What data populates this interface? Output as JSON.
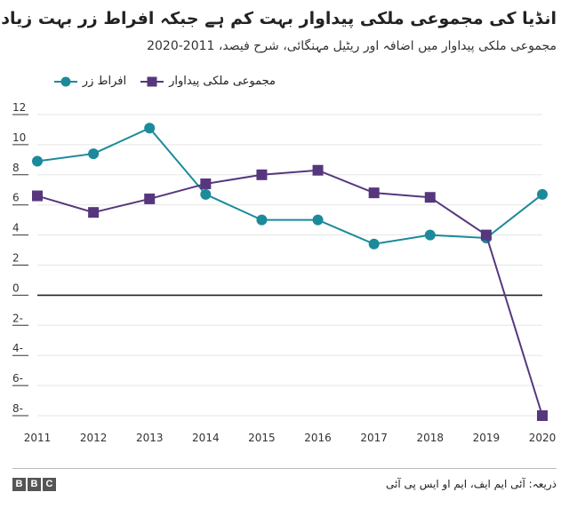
{
  "title": "انڈیا کی مجموعی ملکی پیداوار بہت کم ہے جبکہ افراط زر بہت زیادہ",
  "subtitle": "مجموعی ملکی پیداوار میں اضافہ اور ریٹیل مہنگائی، شرح فیصد، 2011-2020",
  "source": "ذریعہ: آئی ایم ایف، ایم او ایس پی آئی",
  "brand": [
    "B",
    "B",
    "C"
  ],
  "colors": {
    "gdp": "#56377e",
    "inflation": "#1b8a9b",
    "zero_line": "#222222",
    "grid": "#e5e5e5"
  },
  "chart_data": {
    "type": "line",
    "x": [
      "2011",
      "2012",
      "2013",
      "2014",
      "2015",
      "2016",
      "2017",
      "2018",
      "2019",
      "2020"
    ],
    "series": [
      {
        "name": "افراط زر",
        "marker": "circle",
        "color": "#1b8a9b",
        "values": [
          8.9,
          9.4,
          11.1,
          6.7,
          5.0,
          5.0,
          3.4,
          4.0,
          3.8,
          6.7
        ]
      },
      {
        "name": "مجموعی ملکی پیداوار",
        "marker": "square",
        "color": "#56377e",
        "values": [
          6.6,
          5.5,
          6.4,
          7.4,
          8.0,
          8.3,
          6.8,
          6.5,
          4.0,
          -8.0
        ]
      }
    ],
    "ylim": [
      -8,
      12
    ],
    "yticks": [
      "12",
      "10",
      "8",
      "6",
      "4",
      "2",
      "0",
      "2-",
      "4-",
      "6-",
      "8-"
    ],
    "ytick_values": [
      12,
      10,
      8,
      6,
      4,
      2,
      0,
      -2,
      -4,
      -6,
      -8
    ],
    "grid": true,
    "legend_position": "top"
  }
}
